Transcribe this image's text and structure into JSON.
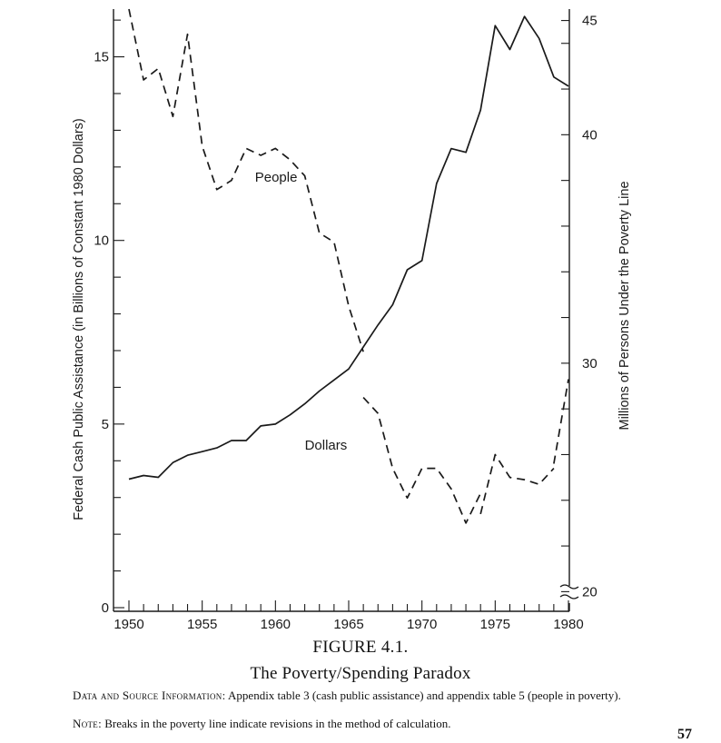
{
  "chart_data": {
    "type": "line",
    "title": "",
    "xlabel": "",
    "x_ticks": [
      1950,
      1955,
      1960,
      1965,
      1970,
      1975,
      1980
    ],
    "xlim": [
      1950,
      1980
    ],
    "left_axis": {
      "label": "Federal Cash Public Assistance (in Billions of Constant 1980 Dollars)",
      "ylim": [
        0,
        16.3
      ],
      "major_ticks": [
        0,
        5,
        10,
        15
      ],
      "minor_step": 1
    },
    "right_axis": {
      "label": "Millions of Persons Under the Poverty Line",
      "ylim": [
        19.3,
        45.5
      ],
      "major_ticks": [
        20,
        30,
        40,
        45
      ],
      "minor_step": 2,
      "break_marker": "axis break below 20"
    },
    "series": [
      {
        "name": "Dollars",
        "axis": "left",
        "style": "solid",
        "label_text": "Dollars",
        "points": [
          [
            1950,
            3.5
          ],
          [
            1951,
            3.6
          ],
          [
            1952,
            3.55
          ],
          [
            1953,
            3.95
          ],
          [
            1954,
            4.15
          ],
          [
            1955,
            4.25
          ],
          [
            1956,
            4.35
          ],
          [
            1957,
            4.55
          ],
          [
            1958,
            4.55
          ],
          [
            1959,
            4.95
          ],
          [
            1960,
            5.0
          ],
          [
            1961,
            5.25
          ],
          [
            1962,
            5.55
          ],
          [
            1963,
            5.9
          ],
          [
            1964,
            6.2
          ],
          [
            1965,
            6.5
          ],
          [
            1966,
            7.1
          ],
          [
            1967,
            7.7
          ],
          [
            1968,
            8.25
          ],
          [
            1969,
            9.2
          ],
          [
            1970,
            9.45
          ],
          [
            1971,
            11.55
          ],
          [
            1972,
            12.5
          ],
          [
            1973,
            12.4
          ],
          [
            1974,
            13.55
          ],
          [
            1975,
            15.85
          ],
          [
            1976,
            15.2
          ],
          [
            1977,
            16.1
          ],
          [
            1978,
            15.5
          ],
          [
            1979,
            14.45
          ],
          [
            1980,
            14.2
          ]
        ]
      },
      {
        "name": "People",
        "axis": "right",
        "style": "dashed",
        "label_text": "People",
        "segments": [
          [
            [
              1950,
              45.5
            ],
            [
              1951,
              42.4
            ],
            [
              1952,
              42.9
            ],
            [
              1953,
              40.8
            ],
            [
              1954,
              44.4
            ],
            [
              1955,
              39.5
            ],
            [
              1956,
              37.6
            ],
            [
              1957,
              38.0
            ],
            [
              1958,
              39.4
            ],
            [
              1959,
              39.1
            ],
            [
              1960,
              39.4
            ],
            [
              1961,
              38.9
            ],
            [
              1962,
              38.2
            ],
            [
              1963,
              35.7
            ],
            [
              1964,
              35.3
            ],
            [
              1965,
              32.5
            ],
            [
              1966,
              30.5
            ]
          ],
          [
            [
              1966,
              28.5
            ],
            [
              1967,
              27.8
            ],
            [
              1968,
              25.4
            ],
            [
              1969,
              24.1
            ],
            [
              1970,
              25.4
            ],
            [
              1971,
              25.4
            ],
            [
              1972,
              24.5
            ],
            [
              1973,
              23.0
            ],
            [
              1974,
              24.3
            ]
          ],
          [
            [
              1974,
              23.4
            ],
            [
              1975,
              26.0
            ],
            [
              1976,
              25.0
            ],
            [
              1977,
              24.9
            ],
            [
              1978,
              24.7
            ],
            [
              1979,
              25.4
            ]
          ],
          [
            [
              1979,
              25.6
            ],
            [
              1980,
              29.3
            ]
          ]
        ]
      }
    ]
  },
  "caption": {
    "figure_number": "FIGURE 4.1.",
    "figure_title": "The Poverty/Spending Paradox"
  },
  "notes": {
    "source_label": "Data and Source Information:",
    "source_text": " Appendix table 3 (cash public assistance) and appendix table 5 (people in poverty).",
    "note_label": "Note:",
    "note_text": " Breaks in the poverty line indicate revisions in the method of calculation."
  },
  "page_number": "57"
}
